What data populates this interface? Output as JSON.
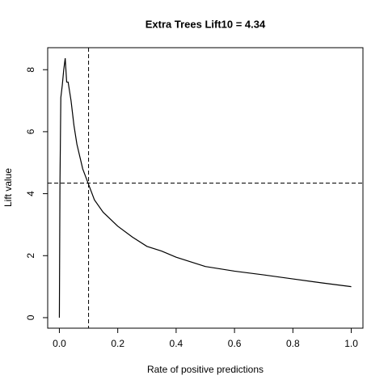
{
  "chart_data": {
    "type": "line",
    "title": "Extra Trees Lift10 =  4.34",
    "xlabel": "Rate of positive predictions",
    "ylabel": "Lift value",
    "x": [
      0,
      0.002,
      0.005,
      0.01,
      0.015,
      0.02,
      0.025,
      0.03,
      0.04,
      0.05,
      0.06,
      0.07,
      0.08,
      0.1,
      0.12,
      0.15,
      0.2,
      0.25,
      0.3,
      0.35,
      0.4,
      0.45,
      0.5,
      0.6,
      0.7,
      0.8,
      0.9,
      1.0
    ],
    "series": [
      {
        "name": "Lift",
        "color": "#000000",
        "values": [
          0,
          4.3,
          7.1,
          7.5,
          8.0,
          8.37,
          7.6,
          7.6,
          7.0,
          6.2,
          5.6,
          5.2,
          4.8,
          4.3,
          3.8,
          3.4,
          2.95,
          2.6,
          2.3,
          2.15,
          1.95,
          1.8,
          1.65,
          1.5,
          1.38,
          1.25,
          1.12,
          1.0
        ]
      }
    ],
    "hline": 4.34,
    "vline": 0.1,
    "xlim": [
      -0.04,
      1.04
    ],
    "ylim": [
      -0.34,
      8.71
    ],
    "xticks": [
      {
        "value": 0,
        "label": "0.0"
      },
      0.2,
      0.4,
      0.6,
      0.8,
      {
        "value": 1,
        "label": "1.0"
      }
    ],
    "yticks": [
      0,
      2,
      4,
      6,
      8
    ]
  }
}
